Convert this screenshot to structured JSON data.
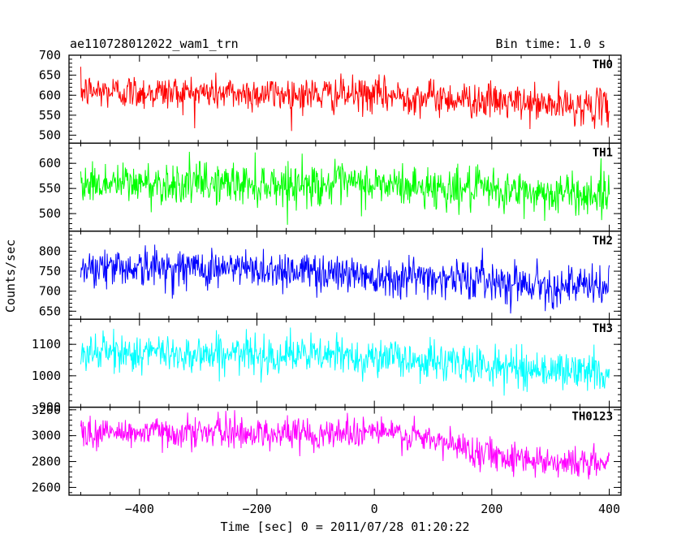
{
  "header": {
    "title": "ae110728012022_wam1_trn",
    "bin_time": "Bin time: 1.0 s"
  },
  "chart_data": {
    "type": "line",
    "title": "ae110728012022_wam1_trn",
    "bin_time_s": 1.0,
    "xlabel": "Time [sec] 0 = 2011/07/28 01:20:22",
    "ylabel": "Counts/sec",
    "xlim": [
      -520,
      420
    ],
    "x_ticks": [
      -400,
      -200,
      0,
      200,
      400
    ],
    "x_tick_labels": [
      "−400",
      "−200",
      "0",
      "200",
      "400"
    ],
    "x_data_range": [
      -500,
      400
    ],
    "grid": false,
    "panels": [
      {
        "name": "TH0",
        "color": "#ff0000",
        "ylim": [
          480,
          700
        ],
        "y_ticks": [
          500,
          550,
          600,
          650,
          700
        ],
        "y_tick_labels": [
          "500",
          "550",
          "600",
          "650",
          "700"
        ],
        "trend_x": [
          -500,
          -400,
          -300,
          -200,
          -100,
          0,
          100,
          200,
          300,
          400
        ],
        "trend_y": [
          610,
          608,
          606,
          604,
          602,
          600,
          595,
          585,
          575,
          570
        ],
        "noise_amp": 40
      },
      {
        "name": "TH1",
        "color": "#00ff00",
        "ylim": [
          465,
          640
        ],
        "y_ticks": [
          500,
          550,
          600
        ],
        "y_tick_labels": [
          "500",
          "550",
          "600"
        ],
        "trend_x": [
          -500,
          -400,
          -300,
          -200,
          -100,
          0,
          100,
          200,
          300,
          400
        ],
        "trend_y": [
          560,
          560,
          560,
          559,
          558,
          557,
          552,
          545,
          540,
          538
        ],
        "noise_amp": 38
      },
      {
        "name": "TH2",
        "color": "#0000ff",
        "ylim": [
          630,
          850
        ],
        "y_ticks": [
          650,
          700,
          750,
          800
        ],
        "y_tick_labels": [
          "650",
          "700",
          "750",
          "800"
        ],
        "trend_x": [
          -500,
          -400,
          -300,
          -200,
          -100,
          0,
          100,
          200,
          300,
          400
        ],
        "trend_y": [
          762,
          760,
          758,
          755,
          750,
          740,
          735,
          728,
          715,
          708
        ],
        "noise_amp": 45
      },
      {
        "name": "TH3",
        "color": "#00ffff",
        "ylim": [
          900,
          1180
        ],
        "y_ticks": [
          900,
          1000,
          1100
        ],
        "y_tick_labels": [
          "900",
          "1000",
          "1100"
        ],
        "trend_x": [
          -500,
          -400,
          -300,
          -200,
          -100,
          0,
          100,
          200,
          300,
          400
        ],
        "trend_y": [
          1075,
          1072,
          1070,
          1068,
          1065,
          1060,
          1045,
          1030,
          1018,
          1010
        ],
        "noise_amp": 55
      },
      {
        "name": "TH0123",
        "color": "#ff00ff",
        "ylim": [
          2540,
          3220
        ],
        "y_ticks": [
          2600,
          2800,
          3000,
          3200
        ],
        "y_tick_labels": [
          "2600",
          "2800",
          "3000",
          "3200"
        ],
        "trend_x": [
          -500,
          -400,
          -300,
          -200,
          -100,
          0,
          100,
          200,
          300,
          400
        ],
        "trend_y": [
          3020,
          3025,
          3030,
          3020,
          3015,
          3040,
          2960,
          2860,
          2800,
          2780
        ],
        "noise_amp": 110
      }
    ]
  }
}
